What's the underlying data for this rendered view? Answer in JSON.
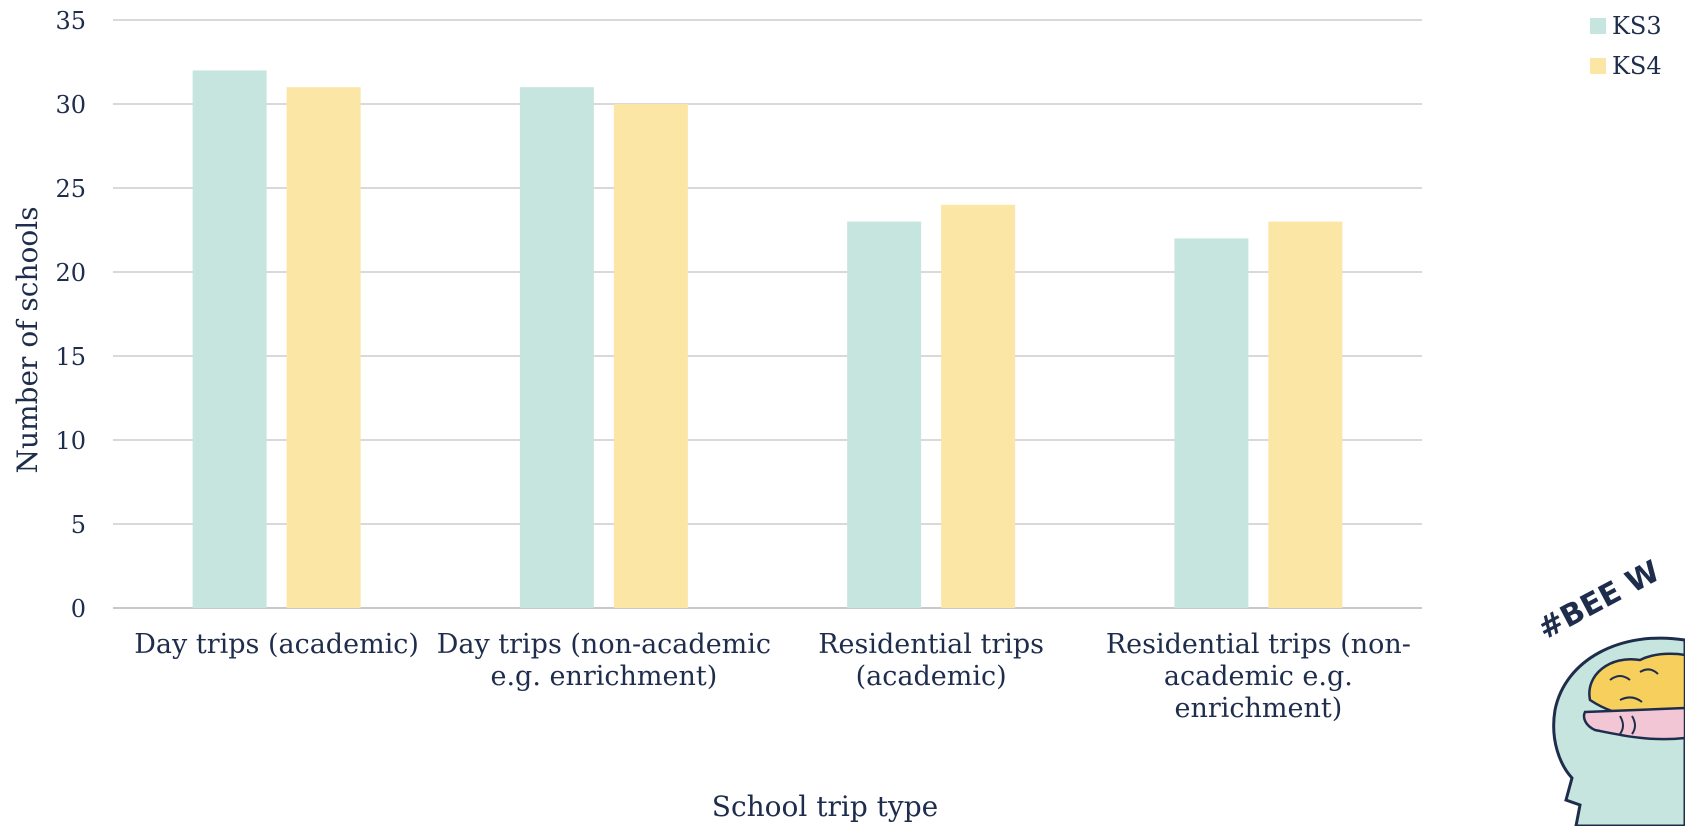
{
  "chart_data": {
    "type": "bar",
    "title": "",
    "xlabel": "School trip type",
    "ylabel": "Number of schools",
    "ylim": [
      0,
      35
    ],
    "yticks": [
      0,
      5,
      10,
      15,
      20,
      25,
      30,
      35
    ],
    "grid": true,
    "legend_position": "top-right",
    "categories": [
      [
        "Day trips (academic)"
      ],
      [
        "Day trips (non-academic",
        "e.g. enrichment)"
      ],
      [
        "Residential trips",
        "(academic)"
      ],
      [
        "Residential trips (non-",
        "academic e.g.",
        "enrichment)"
      ]
    ],
    "series": [
      {
        "name": "KS3",
        "color": "#c7e5df",
        "values": [
          32,
          31,
          23,
          22
        ]
      },
      {
        "name": "KS4",
        "color": "#fbe6a6",
        "values": [
          31,
          30,
          24,
          23
        ]
      }
    ]
  },
  "logo": {
    "text": "#BEE W",
    "icon": "brain-head-icon"
  }
}
